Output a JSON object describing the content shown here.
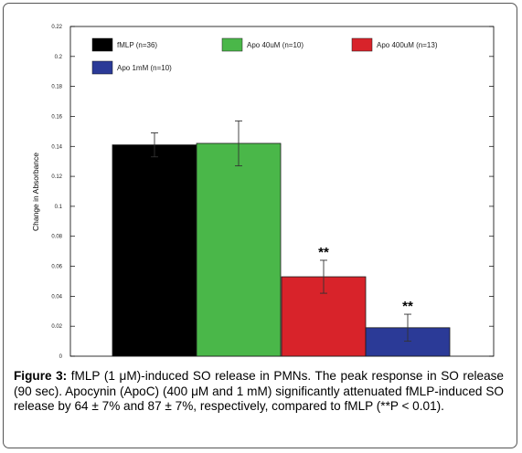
{
  "chart_data": {
    "type": "bar",
    "ylabel": "Change in Absorbance",
    "ylim": [
      0,
      0.22
    ],
    "yticks": [
      {
        "value": 0,
        "label": "0"
      },
      {
        "value": 0.02,
        "label": "0.02"
      },
      {
        "value": 0.04,
        "label": "0.04"
      },
      {
        "value": 0.06,
        "label": "0.06"
      },
      {
        "value": 0.08,
        "label": "0.08"
      },
      {
        "value": 0.1,
        "label": "0.1"
      },
      {
        "value": 0.12,
        "label": "0.12"
      },
      {
        "value": 0.14,
        "label": "0.14"
      },
      {
        "value": 0.16,
        "label": "0.16"
      },
      {
        "value": 0.18,
        "label": "0.18"
      },
      {
        "value": 0.2,
        "label": "0.2"
      },
      {
        "value": 0.22,
        "label": "0.22"
      }
    ],
    "grid": false,
    "legend_position": "top",
    "series": [
      {
        "name": "fMLP (n=36)",
        "color": "#000000",
        "value": 0.141,
        "error": 0.008,
        "significance": ""
      },
      {
        "name": "Apo 40uM (n=10)",
        "color": "#4ab749",
        "value": 0.142,
        "error": 0.015,
        "significance": ""
      },
      {
        "name": "Apo 400uM (n=13)",
        "color": "#d8232a",
        "value": 0.053,
        "error": 0.011,
        "significance": "**"
      },
      {
        "name": "Apo 1mM (n=10)",
        "color": "#2b3a97",
        "value": 0.019,
        "error": 0.009,
        "significance": "**"
      }
    ]
  },
  "caption": {
    "label": "Figure 3:",
    "text": " fMLP (1 μM)-induced SO release in PMNs. The peak response in SO release (90 sec). Apocynin (ApoC) (400 μM and 1 mM) significantly attenuated fMLP-induced SO release by 64 ± 7% and 87 ± 7%, respectively, compared to fMLP (**P < 0.01)."
  }
}
